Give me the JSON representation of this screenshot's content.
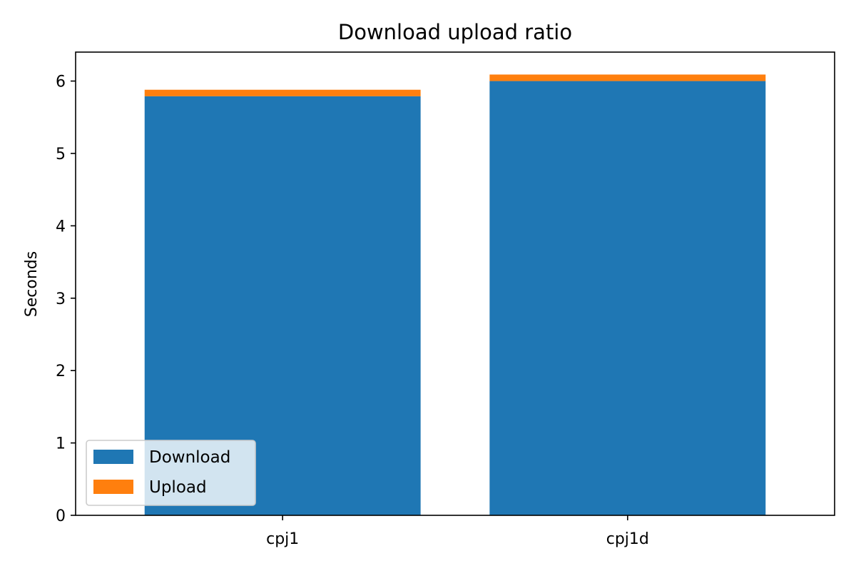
{
  "chart_data": {
    "type": "bar",
    "stacked": true,
    "title": "Download upload ratio",
    "xlabel": "",
    "ylabel": "Seconds",
    "categories": [
      "cpj1",
      "cpj1d"
    ],
    "series": [
      {
        "name": "Download",
        "color": "#1f77b4",
        "values": [
          5.79,
          6.0
        ]
      },
      {
        "name": "Upload",
        "color": "#ff7f0e",
        "values": [
          0.09,
          0.09
        ]
      }
    ],
    "ylim": [
      0,
      6.4
    ],
    "yticks": [
      0,
      1,
      2,
      3,
      4,
      5,
      6
    ],
    "grid": false,
    "legend_position": "lower-left"
  }
}
